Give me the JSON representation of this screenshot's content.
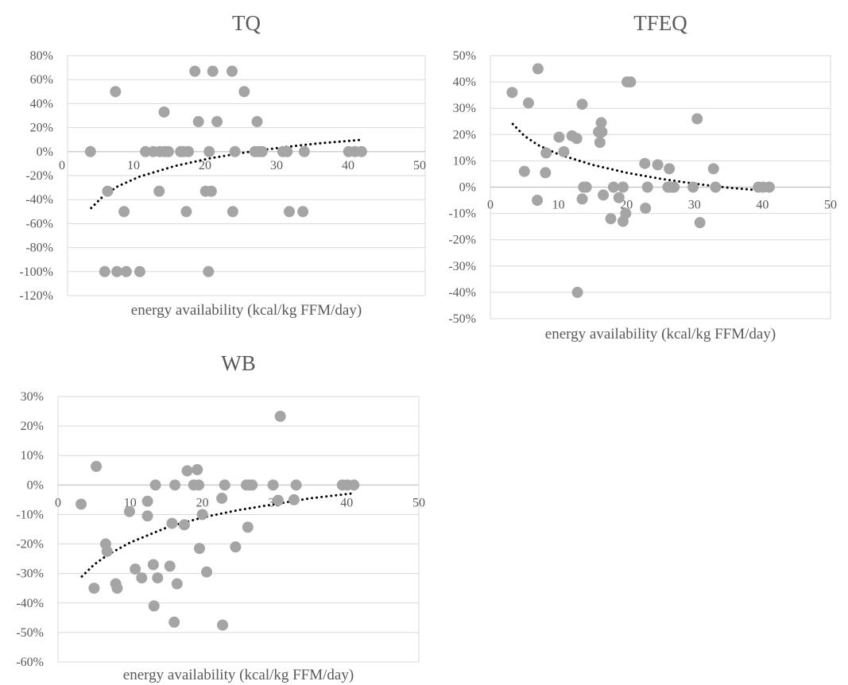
{
  "chart_data": [
    {
      "type": "scatter",
      "title": "TQ",
      "xlabel": "energy availability (kcal/kg FFM/day)",
      "ylabel": "",
      "xlim": [
        0,
        50
      ],
      "ylim": [
        -120,
        80
      ],
      "x_ticks": [
        0,
        10,
        20,
        30,
        40,
        50
      ],
      "x_tick_labels": [
        "0",
        "10",
        "20",
        "30",
        "40",
        "50"
      ],
      "y_ticks": [
        -120,
        -100,
        -80,
        -60,
        -40,
        -20,
        0,
        20,
        40,
        60,
        80
      ],
      "y_tick_labels": [
        "-120%",
        "-100%",
        "-80%",
        "-60%",
        "-40%",
        "-20%",
        "0%",
        "20%",
        "40%",
        "60%",
        "80%"
      ],
      "grid": "horizontal",
      "trendline": "logarithmic, dotted",
      "trend_points": [
        [
          3.3,
          -47
        ],
        [
          5,
          -37
        ],
        [
          7,
          -29
        ],
        [
          10,
          -21
        ],
        [
          15,
          -12
        ],
        [
          20,
          -5.5
        ],
        [
          25,
          -0.5
        ],
        [
          30,
          3.5
        ],
        [
          35,
          6.8
        ],
        [
          41,
          9.8
        ]
      ],
      "points": [
        [
          3.2,
          0
        ],
        [
          5.2,
          -100
        ],
        [
          5.6,
          -33
        ],
        [
          6.7,
          50
        ],
        [
          6.9,
          -100
        ],
        [
          7.9,
          -50
        ],
        [
          8.2,
          -100
        ],
        [
          10.1,
          -100
        ],
        [
          10.9,
          0
        ],
        [
          12.0,
          0
        ],
        [
          12.8,
          -33
        ],
        [
          12.9,
          0
        ],
        [
          13.5,
          33
        ],
        [
          13.6,
          0
        ],
        [
          14.1,
          0
        ],
        [
          15.8,
          0
        ],
        [
          16.2,
          0
        ],
        [
          16.6,
          -50
        ],
        [
          16.9,
          0
        ],
        [
          17.8,
          67
        ],
        [
          18.3,
          25
        ],
        [
          19.3,
          -33
        ],
        [
          19.7,
          -100
        ],
        [
          19.8,
          0
        ],
        [
          20.1,
          -33
        ],
        [
          20.3,
          67
        ],
        [
          20.9,
          25
        ],
        [
          23.0,
          67
        ],
        [
          23.1,
          -50
        ],
        [
          23.4,
          0
        ],
        [
          24.7,
          50
        ],
        [
          26.2,
          0
        ],
        [
          26.5,
          25
        ],
        [
          26.7,
          0
        ],
        [
          27.2,
          0
        ],
        [
          30.1,
          0
        ],
        [
          30.7,
          0
        ],
        [
          31.0,
          -50
        ],
        [
          32.9,
          -50
        ],
        [
          33.1,
          0
        ],
        [
          39.3,
          0
        ],
        [
          40.2,
          0
        ],
        [
          41.1,
          0
        ]
      ]
    },
    {
      "type": "scatter",
      "title": "TFEQ",
      "xlabel": "energy availability (kcal/kg FFM/day)",
      "ylabel": "",
      "xlim": [
        0,
        50
      ],
      "ylim": [
        -50,
        50
      ],
      "x_ticks": [
        0,
        10,
        20,
        30,
        40,
        50
      ],
      "x_tick_labels": [
        "0",
        "10",
        "20",
        "30",
        "40",
        "50"
      ],
      "y_ticks": [
        -50,
        -40,
        -30,
        -20,
        -10,
        0,
        10,
        20,
        30,
        40,
        50
      ],
      "y_tick_labels": [
        "-50%",
        "-40%",
        "-30%",
        "-20%",
        "-10%",
        "0%",
        "10%",
        "20%",
        "30%",
        "40%",
        "50%"
      ],
      "grid": "horizontal",
      "trendline": "logarithmic, dotted",
      "trend_points": [
        [
          3.3,
          24
        ],
        [
          5,
          19.5
        ],
        [
          7,
          16
        ],
        [
          10,
          12.5
        ],
        [
          15,
          8.5
        ],
        [
          20,
          5.5
        ],
        [
          25,
          3.2
        ],
        [
          30,
          1.3
        ],
        [
          35,
          -0.2
        ],
        [
          41,
          -1.5
        ]
      ],
      "points": [
        [
          3.2,
          36
        ],
        [
          5.0,
          6
        ],
        [
          5.6,
          32
        ],
        [
          6.9,
          -5
        ],
        [
          7.0,
          45
        ],
        [
          8.1,
          5.5
        ],
        [
          8.2,
          13
        ],
        [
          10.1,
          19
        ],
        [
          10.8,
          13.5
        ],
        [
          12.0,
          19.5
        ],
        [
          12.7,
          18.5
        ],
        [
          12.8,
          -40
        ],
        [
          13.5,
          31.5
        ],
        [
          13.5,
          -4.5
        ],
        [
          13.7,
          0
        ],
        [
          14.1,
          0
        ],
        [
          15.9,
          21
        ],
        [
          16.1,
          17
        ],
        [
          16.3,
          24.5
        ],
        [
          16.4,
          21
        ],
        [
          16.6,
          -3
        ],
        [
          17.7,
          -12
        ],
        [
          18.1,
          0
        ],
        [
          18.9,
          -4
        ],
        [
          19.5,
          0
        ],
        [
          19.5,
          -13
        ],
        [
          19.9,
          -10
        ],
        [
          20.1,
          40
        ],
        [
          20.6,
          40
        ],
        [
          22.7,
          9
        ],
        [
          22.8,
          -8
        ],
        [
          23.1,
          0
        ],
        [
          24.6,
          8.5
        ],
        [
          26.1,
          0
        ],
        [
          26.3,
          7
        ],
        [
          26.6,
          0
        ],
        [
          27.0,
          0
        ],
        [
          29.8,
          0
        ],
        [
          30.4,
          26
        ],
        [
          30.8,
          -13.5
        ],
        [
          32.8,
          7
        ],
        [
          33.1,
          0
        ],
        [
          39.4,
          0
        ],
        [
          40.1,
          0
        ],
        [
          41.0,
          0
        ]
      ]
    },
    {
      "type": "scatter",
      "title": "WB",
      "xlabel": "energy availability (kcal/kg FFM/day)",
      "ylabel": "",
      "xlim": [
        0,
        50
      ],
      "ylim": [
        -60,
        30
      ],
      "x_ticks": [
        0,
        10,
        20,
        30,
        40,
        50
      ],
      "x_tick_labels": [
        "0",
        "10",
        "20",
        "30",
        "40",
        "50"
      ],
      "y_ticks": [
        -60,
        -50,
        -40,
        -30,
        -20,
        -10,
        0,
        10,
        20,
        30
      ],
      "y_tick_labels": [
        "-60%",
        "-50%",
        "-40%",
        "-30%",
        "-20%",
        "-10%",
        "0%",
        "10%",
        "20%",
        "30%"
      ],
      "grid": "horizontal",
      "trendline": "logarithmic, dotted",
      "trend_points": [
        [
          3.3,
          -31
        ],
        [
          5,
          -27
        ],
        [
          7,
          -23.5
        ],
        [
          10,
          -19.5
        ],
        [
          15,
          -14.5
        ],
        [
          20,
          -11
        ],
        [
          25,
          -8.5
        ],
        [
          30,
          -6.5
        ],
        [
          35,
          -4.5
        ],
        [
          41,
          -2.8
        ]
      ],
      "points": [
        [
          3.2,
          -6.5
        ],
        [
          5.0,
          -35
        ],
        [
          5.3,
          6.3
        ],
        [
          6.6,
          -20
        ],
        [
          6.8,
          -22.5
        ],
        [
          8.0,
          -33.5
        ],
        [
          8.2,
          -35
        ],
        [
          9.9,
          -9
        ],
        [
          10.7,
          -28.5
        ],
        [
          11.6,
          -31.5
        ],
        [
          12.4,
          -5.5
        ],
        [
          12.4,
          -10.5
        ],
        [
          13.2,
          -27
        ],
        [
          13.3,
          -41
        ],
        [
          13.5,
          0
        ],
        [
          13.8,
          -31.5
        ],
        [
          15.5,
          -27.5
        ],
        [
          15.8,
          -13
        ],
        [
          16.1,
          -46.5
        ],
        [
          16.2,
          0
        ],
        [
          16.5,
          -33.5
        ],
        [
          17.5,
          -13.5
        ],
        [
          17.9,
          4.8
        ],
        [
          18.8,
          0
        ],
        [
          19.3,
          5.2
        ],
        [
          19.5,
          0
        ],
        [
          19.6,
          -21.5
        ],
        [
          20.0,
          -10
        ],
        [
          20.6,
          -29.5
        ],
        [
          22.7,
          -4.5
        ],
        [
          22.8,
          -47.5
        ],
        [
          23.1,
          0
        ],
        [
          24.6,
          -21
        ],
        [
          26.1,
          0
        ],
        [
          26.3,
          -14.3
        ],
        [
          26.5,
          0
        ],
        [
          26.9,
          0
        ],
        [
          29.8,
          0
        ],
        [
          30.5,
          -5.2
        ],
        [
          30.8,
          23.3
        ],
        [
          32.7,
          -5
        ],
        [
          33.0,
          0
        ],
        [
          39.4,
          0
        ],
        [
          40.1,
          0
        ],
        [
          41.0,
          0
        ]
      ]
    }
  ]
}
